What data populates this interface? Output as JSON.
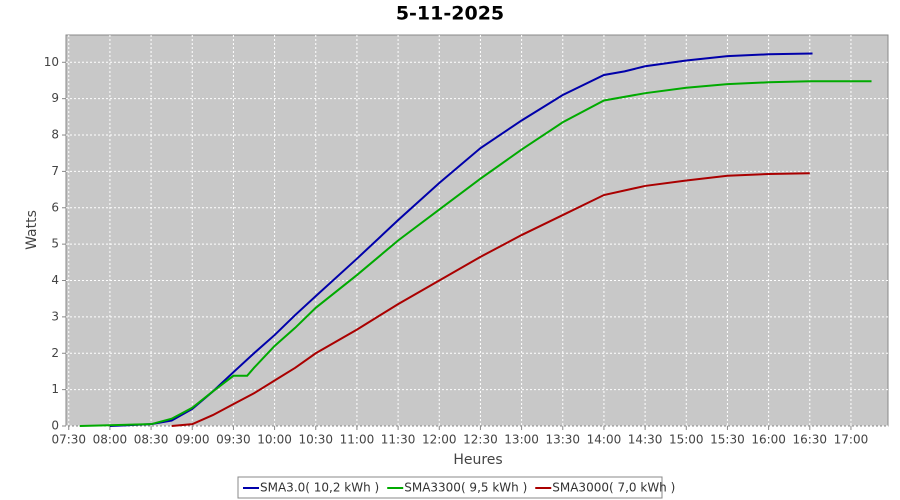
{
  "chart_data": {
    "type": "line",
    "title": "5-11-2025",
    "x_label": "Heures",
    "y_label": "Watts",
    "xlim": [
      "07:28",
      "17:27"
    ],
    "xticks": [
      "07:30",
      "08:00",
      "08:30",
      "09:00",
      "09:30",
      "10:00",
      "10:30",
      "11:00",
      "11:30",
      "12:00",
      "12:30",
      "13:00",
      "13:30",
      "14:00",
      "14:30",
      "15:00",
      "15:30",
      "16:00",
      "16:30",
      "17:00"
    ],
    "ylim": [
      0,
      10.75
    ],
    "yticks": [
      0,
      1,
      2,
      3,
      4,
      5,
      6,
      7,
      8,
      9,
      10
    ],
    "grid": true,
    "series": [
      {
        "name": "SMA3.0( 10,2 kWh )",
        "color": "#0000aa",
        "x": [
          "08:00",
          "08:30",
          "08:45",
          "09:00",
          "09:15",
          "09:30",
          "09:45",
          "10:00",
          "10:15",
          "10:30",
          "11:00",
          "11:30",
          "12:00",
          "12:30",
          "13:00",
          "13:30",
          "14:00",
          "14:15",
          "14:30",
          "15:00",
          "15:30",
          "16:00",
          "16:32"
        ],
        "values": [
          0,
          0.05,
          0.15,
          0.47,
          0.95,
          1.48,
          2.0,
          2.5,
          3.05,
          3.57,
          4.6,
          5.66,
          6.68,
          7.64,
          8.4,
          9.1,
          9.65,
          9.75,
          9.89,
          10.05,
          10.17,
          10.22,
          10.24
        ]
      },
      {
        "name": "SMA3300( 9,5 kWh )",
        "color": "#00aa00",
        "x": [
          "07:38",
          "08:30",
          "08:45",
          "09:00",
          "09:15",
          "09:30",
          "09:40",
          "09:45",
          "10:00",
          "10:15",
          "10:30",
          "11:00",
          "11:30",
          "12:00",
          "12:30",
          "13:00",
          "13:30",
          "14:00",
          "14:30",
          "15:00",
          "15:30",
          "16:00",
          "16:30",
          "17:00",
          "17:15"
        ],
        "values": [
          0,
          0.05,
          0.2,
          0.5,
          0.95,
          1.38,
          1.38,
          1.6,
          2.2,
          2.7,
          3.25,
          4.15,
          5.1,
          5.95,
          6.8,
          7.6,
          8.35,
          8.95,
          9.15,
          9.3,
          9.4,
          9.45,
          9.48,
          9.48,
          9.48
        ]
      },
      {
        "name": "SMA3000( 7,0 kWh )",
        "color": "#aa0000",
        "x": [
          "08:45",
          "09:00",
          "09:15",
          "09:30",
          "09:45",
          "10:00",
          "10:15",
          "10:30",
          "11:00",
          "11:30",
          "12:00",
          "12:30",
          "13:00",
          "13:30",
          "14:00",
          "14:30",
          "15:00",
          "15:30",
          "16:00",
          "16:30"
        ],
        "values": [
          0,
          0.05,
          0.3,
          0.6,
          0.9,
          1.25,
          1.6,
          2.0,
          2.65,
          3.35,
          4.0,
          4.65,
          5.25,
          5.8,
          6.35,
          6.6,
          6.75,
          6.88,
          6.93,
          6.95
        ]
      }
    ]
  }
}
